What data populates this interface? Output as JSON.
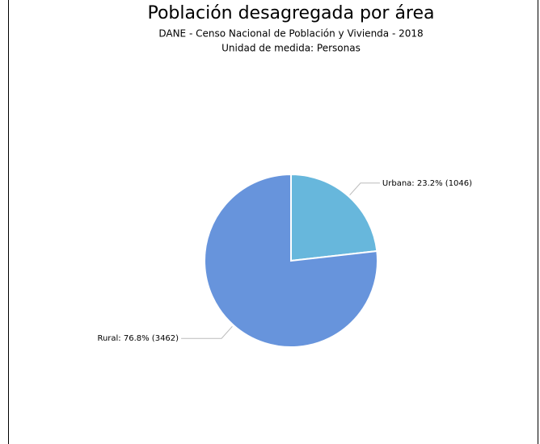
{
  "chart_data": {
    "type": "pie",
    "title": "Población desagregada por área",
    "subtitle": "DANE - Censo Nacional de Población y Vivienda - 2018",
    "subtitle2": "Unidad de medida: Personas",
    "values": [
      1046,
      3462
    ],
    "value_labels": [
      "Urbana: 23.2% (1046)",
      "Rural: 76.8% (3462)"
    ],
    "colors": [
      "#67b7dc",
      "#6794dc"
    ]
  }
}
